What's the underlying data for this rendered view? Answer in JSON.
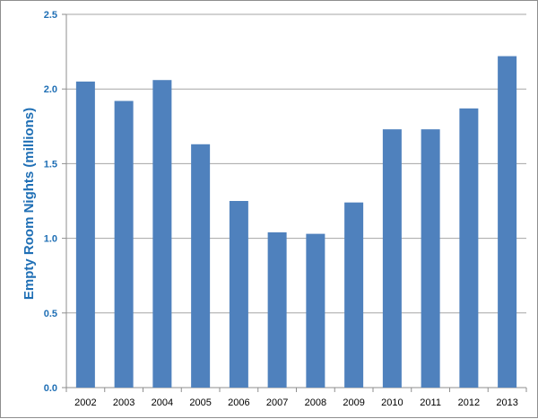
{
  "chart_data": {
    "type": "bar",
    "title": "",
    "xlabel": "",
    "ylabel": "Empty Room Nights (millions)",
    "categories": [
      "2002",
      "2003",
      "2004",
      "2005",
      "2006",
      "2007",
      "2008",
      "2009",
      "2010",
      "2011",
      "2012",
      "2013"
    ],
    "values": [
      2.05,
      1.92,
      2.06,
      1.63,
      1.25,
      1.04,
      1.03,
      1.24,
      1.73,
      1.73,
      1.87,
      2.22
    ],
    "ylim": [
      0,
      2.5
    ],
    "yticks": [
      "0.0",
      "0.5",
      "1.0",
      "1.5",
      "2.0",
      "2.5"
    ],
    "grid": true,
    "legend": "none",
    "colors": {
      "bar": "#4f81bd",
      "gridline": "#a6a6a6",
      "axis_text": "#1f6fb5"
    }
  }
}
